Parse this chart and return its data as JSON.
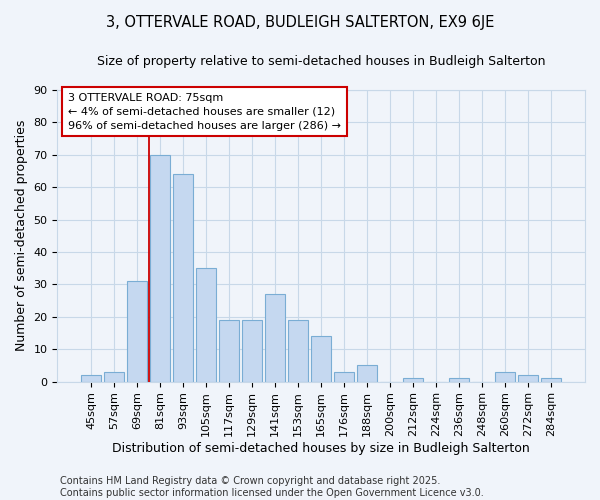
{
  "title": "3, OTTERVALE ROAD, BUDLEIGH SALTERTON, EX9 6JE",
  "subtitle": "Size of property relative to semi-detached houses in Budleigh Salterton",
  "xlabel": "Distribution of semi-detached houses by size in Budleigh Salterton",
  "ylabel": "Number of semi-detached properties",
  "categories": [
    "45sqm",
    "57sqm",
    "69sqm",
    "81sqm",
    "93sqm",
    "105sqm",
    "117sqm",
    "129sqm",
    "141sqm",
    "153sqm",
    "165sqm",
    "176sqm",
    "188sqm",
    "200sqm",
    "212sqm",
    "224sqm",
    "236sqm",
    "248sqm",
    "260sqm",
    "272sqm",
    "284sqm"
  ],
  "values": [
    2,
    3,
    31,
    70,
    64,
    35,
    19,
    19,
    27,
    19,
    14,
    3,
    5,
    0,
    1,
    0,
    1,
    0,
    3,
    2,
    1
  ],
  "bar_color": "#c5d8f0",
  "bar_edgecolor": "#7aadd4",
  "vline_x": 3.0,
  "vline_color": "#cc0000",
  "annotation_text": "3 OTTERVALE ROAD: 75sqm\n← 4% of semi-detached houses are smaller (12)\n96% of semi-detached houses are larger (286) →",
  "annotation_box_edgecolor": "#cc0000",
  "footer_text": "Contains HM Land Registry data © Crown copyright and database right 2025.\nContains public sector information licensed under the Open Government Licence v3.0.",
  "bg_color": "#f0f4fa",
  "plot_bg_color": "#f0f4fa",
  "ylim": [
    0,
    90
  ],
  "yticks": [
    0,
    10,
    20,
    30,
    40,
    50,
    60,
    70,
    80,
    90
  ],
  "title_fontsize": 10.5,
  "subtitle_fontsize": 9,
  "xlabel_fontsize": 9,
  "ylabel_fontsize": 9,
  "tick_fontsize": 8,
  "footer_fontsize": 7,
  "annot_fontsize": 8
}
